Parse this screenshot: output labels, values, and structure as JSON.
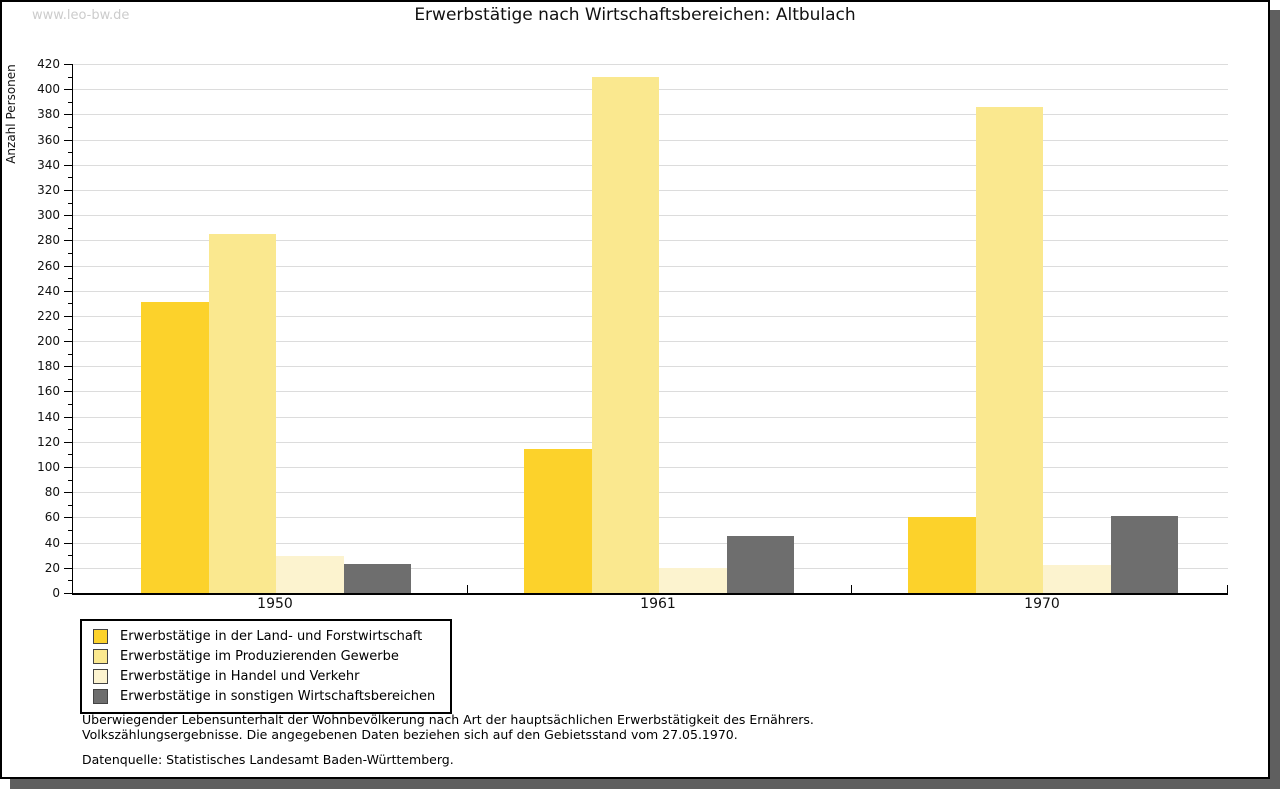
{
  "watermark": "www.leo-bw.de",
  "title": "Erwerbstätige nach Wirtschaftsbereichen: Altbulach",
  "chart_data": {
    "type": "bar",
    "title": "Erwerbstätige nach Wirtschaftsbereichen: Altbulach",
    "xlabel": "",
    "ylabel": "Anzahl Personen",
    "categories": [
      "1950",
      "1961",
      "1970"
    ],
    "series": [
      {
        "name": "Erwerbstätige in der Land- und Forstwirtschaft",
        "color": "#FCD22B",
        "values": [
          231,
          114,
          60
        ]
      },
      {
        "name": "Erwerbstätige im Produzierenden Gewerbe",
        "color": "#FAE88F",
        "values": [
          285,
          410,
          386
        ]
      },
      {
        "name": "Erwerbstätige in Handel und Verkehr",
        "color": "#FCF3CF",
        "values": [
          29,
          20,
          22
        ]
      },
      {
        "name": "Erwerbstätige in sonstigen Wirtschaftsbereichen",
        "color": "#6E6E6E",
        "values": [
          23,
          45,
          61
        ]
      }
    ],
    "ylim": [
      0,
      420
    ],
    "ytick_step": 20,
    "ytick_minor_step": 10,
    "grid": true,
    "legend_position": "bottom-left"
  },
  "footnotes": {
    "line1": "Überwiegender Lebensunterhalt der Wohnbevölkerung nach Art der hauptsächlichen Erwerbstätigkeit des Ernährers.",
    "line2": "Volkszählungsergebnisse. Die angegebenen Daten beziehen sich auf den Gebietsstand vom 27.05.1970.",
    "source": "Datenquelle: Statistisches Landesamt Baden-Württemberg."
  },
  "colors": {
    "gridline": "#dcdcdc",
    "axis": "#000000",
    "shadow": "#5f5f5f",
    "watermark": "#cccccc"
  }
}
